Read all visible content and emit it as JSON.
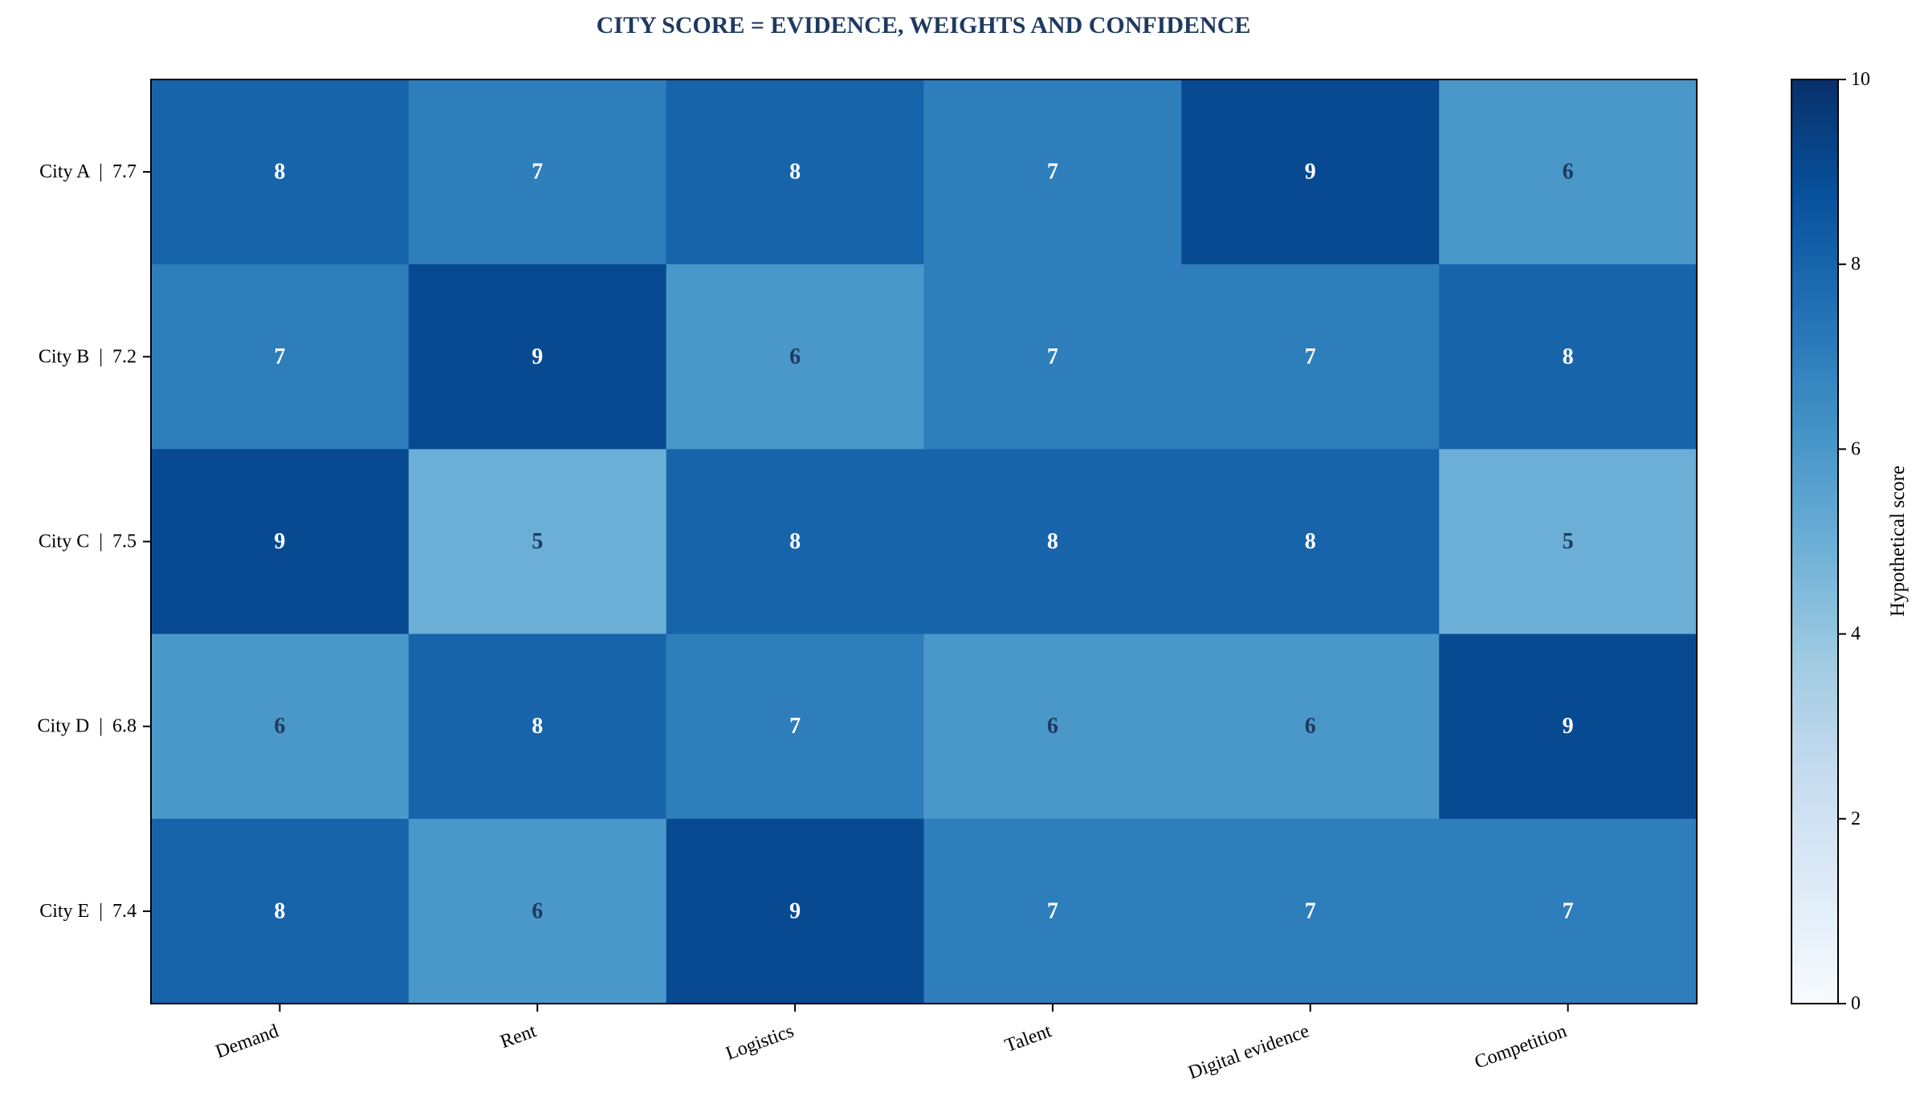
{
  "chart_data": {
    "type": "heatmap",
    "title": "CITY SCORE = EVIDENCE, WEIGHTS AND CONFIDENCE",
    "rows": [
      "City A  |  7.7",
      "City B  |  7.2",
      "City C  |  7.5",
      "City D  |  6.8",
      "City E  |  7.4"
    ],
    "columns": [
      "Demand",
      "Rent",
      "Logistics",
      "Talent",
      "Digital evidence",
      "Competition"
    ],
    "values": [
      [
        8,
        7,
        8,
        7,
        9,
        6
      ],
      [
        7,
        9,
        6,
        7,
        7,
        8
      ],
      [
        9,
        5,
        8,
        8,
        8,
        5
      ],
      [
        6,
        8,
        7,
        6,
        6,
        9
      ],
      [
        8,
        6,
        9,
        7,
        7,
        7
      ]
    ],
    "colorbar": {
      "label": "Hypothetical score",
      "range": [
        0,
        10
      ],
      "ticks": [
        "0",
        "2",
        "4",
        "6",
        "8",
        "10"
      ],
      "colormap": "Blues"
    },
    "colors": {
      "title": "#1f3a5f",
      "text_light": "#ffffff",
      "text_dark": "#1f3a5f"
    }
  }
}
